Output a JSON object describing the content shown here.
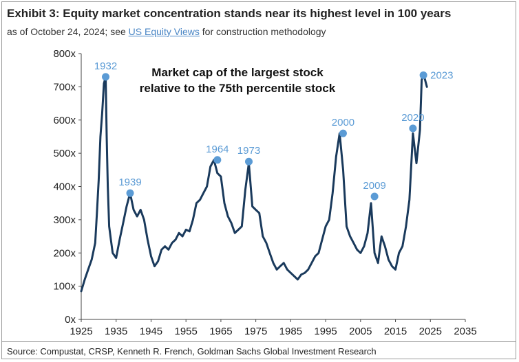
{
  "header": {
    "title": "Exhibit 3: Equity market concentration stands near its highest level in 100 years",
    "subtitle_prefix": "as of October 24, 2024; see ",
    "subtitle_link": "US Equity Views",
    "subtitle_suffix": " for construction methodology"
  },
  "footer": {
    "source": "Source: Compustat, CRSP, Kenneth R. French, Goldman Sachs Global Investment Research"
  },
  "colors": {
    "line": "#1a3a5c",
    "marker": "#5b9bd5",
    "text": "#222222"
  },
  "chart_data": {
    "type": "line",
    "title": "Market cap of the largest stock relative to the 75th percentile stock",
    "xlabel": "",
    "ylabel": "",
    "xlim": [
      1925,
      2035
    ],
    "ylim": [
      0,
      800
    ],
    "x_ticks": [
      1925,
      1935,
      1945,
      1955,
      1965,
      1975,
      1985,
      1995,
      2005,
      2015,
      2025,
      2035
    ],
    "x_tick_labels": [
      "1925",
      "1935",
      "1945",
      "1955",
      "1965",
      "1975",
      "1985",
      "1995",
      "2005",
      "2015",
      "2025",
      "2035"
    ],
    "y_ticks": [
      0,
      100,
      200,
      300,
      400,
      500,
      600,
      700,
      800
    ],
    "y_tick_labels": [
      "0x",
      "100x",
      "200x",
      "300x",
      "400x",
      "500x",
      "600x",
      "700x",
      "800x"
    ],
    "grid": false,
    "series": [
      {
        "x": [
          1925,
          1926,
          1927,
          1928,
          1929,
          1929.5,
          1930,
          1930.5,
          1931,
          1931.5,
          1932,
          1932.3,
          1932.6,
          1933,
          1933.5,
          1934,
          1935,
          1936,
          1937,
          1938,
          1939,
          1940,
          1941,
          1942,
          1943,
          1944,
          1945,
          1946,
          1947,
          1948,
          1949,
          1950,
          1951,
          1952,
          1953,
          1954,
          1955,
          1956,
          1957,
          1958,
          1959,
          1960,
          1961,
          1962,
          1963,
          1964,
          1965,
          1966,
          1967,
          1968,
          1969,
          1970,
          1971,
          1972,
          1973,
          1974,
          1975,
          1976,
          1977,
          1978,
          1979,
          1980,
          1981,
          1982,
          1983,
          1984,
          1985,
          1986,
          1987,
          1988,
          1989,
          1990,
          1991,
          1992,
          1993,
          1994,
          1995,
          1996,
          1997,
          1998,
          1999,
          2000,
          2001,
          2002,
          2003,
          2004,
          2005,
          2006,
          2007,
          2008,
          2009,
          2010,
          2011,
          2012,
          2013,
          2014,
          2015,
          2016,
          2017,
          2018,
          2019,
          2020,
          2021,
          2022,
          2022.5,
          2023,
          2024
        ],
        "y": [
          85,
          120,
          150,
          180,
          230,
          320,
          420,
          550,
          620,
          710,
          730,
          550,
          400,
          280,
          240,
          200,
          185,
          240,
          290,
          340,
          380,
          330,
          310,
          330,
          300,
          240,
          190,
          160,
          175,
          210,
          220,
          210,
          230,
          240,
          260,
          250,
          270,
          265,
          300,
          350,
          360,
          380,
          400,
          460,
          480,
          440,
          430,
          350,
          310,
          290,
          260,
          270,
          280,
          390,
          470,
          340,
          330,
          320,
          250,
          230,
          200,
          170,
          150,
          160,
          170,
          150,
          140,
          130,
          120,
          135,
          140,
          150,
          170,
          190,
          200,
          240,
          280,
          300,
          380,
          490,
          560,
          450,
          280,
          250,
          230,
          210,
          200,
          220,
          260,
          350,
          200,
          170,
          250,
          220,
          180,
          160,
          150,
          200,
          220,
          280,
          360,
          560,
          470,
          570,
          720,
          740,
          700
        ]
      }
    ],
    "annotations": [
      {
        "label": "1932",
        "x": 1932,
        "y": 730
      },
      {
        "label": "1939",
        "x": 1939,
        "y": 380
      },
      {
        "label": "1964",
        "x": 1964,
        "y": 480
      },
      {
        "label": "1973",
        "x": 1973,
        "y": 475
      },
      {
        "label": "2000",
        "x": 2000,
        "y": 560
      },
      {
        "label": "2009",
        "x": 2009,
        "y": 370
      },
      {
        "label": "2020",
        "x": 2020,
        "y": 575
      },
      {
        "label": "2023",
        "x": 2023,
        "y": 735
      }
    ]
  }
}
